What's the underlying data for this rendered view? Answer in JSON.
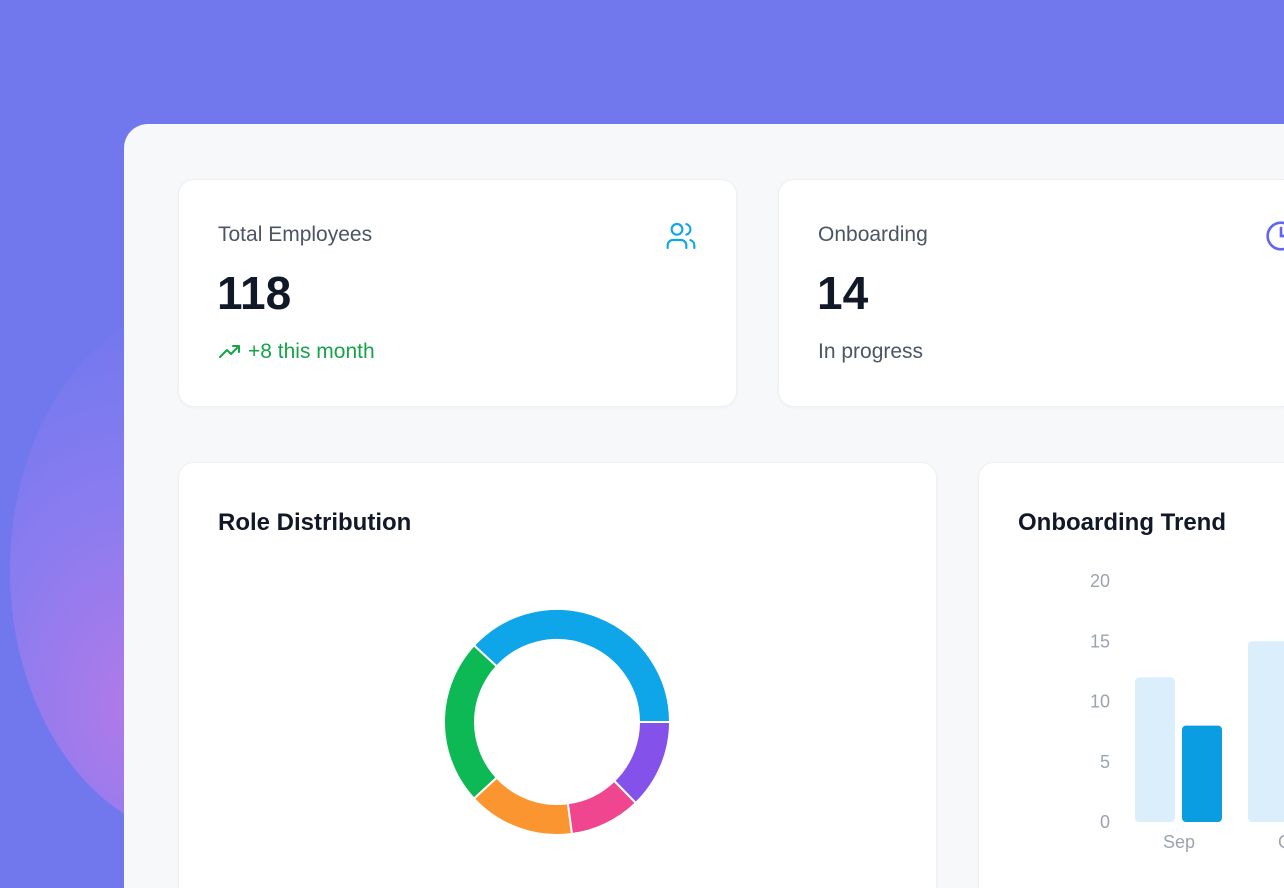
{
  "stats": [
    {
      "label": "Total Employees",
      "value": "118",
      "sub": "+8 this month",
      "icon": "users-icon",
      "accent": "#0ea5e9",
      "sub_color": "#16a34a"
    },
    {
      "label": "Onboarding",
      "value": "14",
      "sub": "In progress",
      "icon": "clock-icon",
      "accent": "#6366f1"
    }
  ],
  "role_distribution": {
    "title": "Role Distribution",
    "chart_data": {
      "type": "pie",
      "donut": true,
      "values": [
        45,
        28,
        18,
        12,
        15
      ],
      "colors": [
        "#0ea5e9",
        "#0cb955",
        "#fb9530",
        "#f0468f",
        "#8452ea"
      ]
    }
  },
  "onboarding_trend": {
    "title": "Onboarding Trend",
    "chart_data": {
      "type": "bar",
      "categories": [
        "Sep",
        "Oct"
      ],
      "series": [
        {
          "values": [
            12,
            15
          ],
          "color": "#dbeefc"
        },
        {
          "values": [
            8,
            null
          ],
          "color": "#0b9de2"
        }
      ],
      "yticks": [
        "0",
        "5",
        "10",
        "15",
        "20"
      ],
      "ylim": [
        0,
        20
      ]
    }
  }
}
